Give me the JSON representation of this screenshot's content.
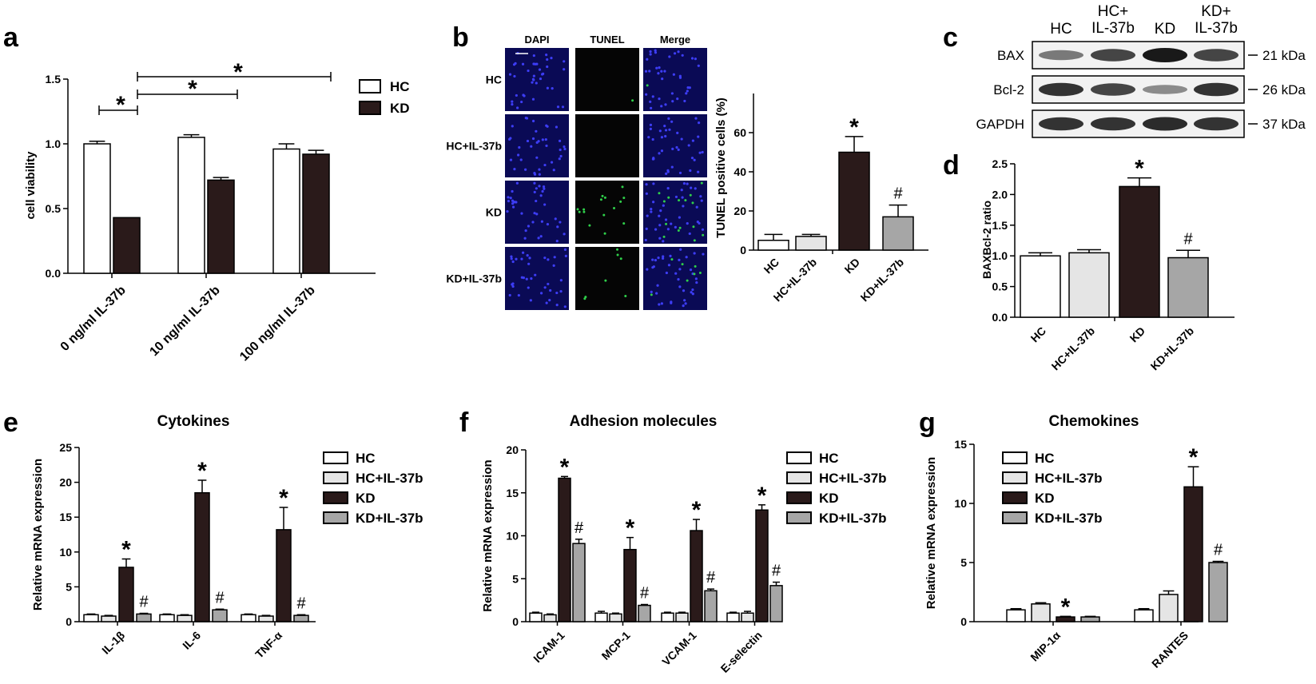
{
  "panels": {
    "a": "a",
    "b": "b",
    "c": "c",
    "d": "d",
    "e": "e",
    "f": "f",
    "g": "g"
  },
  "colors": {
    "HC": "#ffffff",
    "HC_IL37b": "#e5e5e5",
    "KD": "#2a1a1a",
    "KD_IL37b": "#a6a6a6",
    "dapi_bg": "#0a0a55",
    "dapi_dot": "#3d3df5",
    "tunel_bg": "#050505",
    "tunel_dot": "#2fd04a"
  },
  "microscopy": {
    "columns": [
      "DAPI",
      "TUNEL",
      "Merge"
    ],
    "rows": [
      "HC",
      "HC+IL-37b",
      "KD",
      "KD+IL-37b"
    ],
    "tunel_density": [
      0.02,
      0.0,
      0.25,
      0.12
    ]
  },
  "western_blot": {
    "columns": [
      "HC",
      "HC+\nIL-37b",
      "KD",
      "KD+\nIL-37b"
    ],
    "proteins": [
      {
        "name": "BAX",
        "size": "21 kDa",
        "intensity": [
          0.45,
          0.75,
          1.0,
          0.75
        ]
      },
      {
        "name": "Bcl-2",
        "size": "26 kDa",
        "intensity": [
          0.85,
          0.75,
          0.35,
          0.85
        ]
      },
      {
        "name": "GAPDH",
        "size": "37 kDa",
        "intensity": [
          0.85,
          0.85,
          0.9,
          0.85
        ]
      }
    ]
  },
  "chart_data": [
    {
      "id": "a",
      "type": "bar",
      "ylabel": "cell viability",
      "ylim": [
        0,
        1.5
      ],
      "yticks": [
        "0.0",
        "0.5",
        "1.0",
        "1.5"
      ],
      "categories": [
        "0 ng/ml IL-37b",
        "10 ng/ml IL-37b",
        "100 ng/ml IL-37b"
      ],
      "series": [
        {
          "name": "HC",
          "values": [
            1.0,
            1.05,
            0.96
          ],
          "errors": [
            0.02,
            0.02,
            0.04
          ]
        },
        {
          "name": "KD",
          "values": [
            0.43,
            0.72,
            0.92
          ],
          "errors": [
            0.0,
            0.02,
            0.03
          ]
        }
      ],
      "legend": [
        "HC",
        "KD"
      ],
      "significance": [
        "*",
        "*",
        "*"
      ]
    },
    {
      "id": "b",
      "type": "bar",
      "ylabel": "TUNEL positive cells (%)",
      "ylim": [
        0,
        80
      ],
      "yticks": [
        "0",
        "20",
        "40",
        "60"
      ],
      "categories": [
        "HC",
        "HC+IL-37b",
        "KD",
        "KD+IL-37b"
      ],
      "values": [
        5,
        7,
        50,
        17
      ],
      "errors": [
        3,
        1,
        8,
        6
      ],
      "annotations": [
        "",
        "",
        "*",
        "#"
      ]
    },
    {
      "id": "d",
      "type": "bar",
      "ylabel": "BAXBcl-2 ratio",
      "ylim": [
        0,
        2.5
      ],
      "yticks": [
        "0.0",
        "0.5",
        "1.0",
        "1.5",
        "2.0",
        "2.5"
      ],
      "categories": [
        "HC",
        "HC+IL-37b",
        "KD",
        "KD+IL-37b"
      ],
      "values": [
        1.0,
        1.05,
        2.13,
        0.97
      ],
      "errors": [
        0.05,
        0.05,
        0.14,
        0.12
      ],
      "annotations": [
        "",
        "",
        "*",
        "#"
      ]
    },
    {
      "id": "e",
      "type": "bar",
      "title": "Cytokines",
      "ylabel": "Relative mRNA expression",
      "ylim": [
        0,
        25
      ],
      "yticks": [
        "0",
        "5",
        "10",
        "15",
        "20",
        "25"
      ],
      "categories": [
        "IL-1β",
        "IL-6",
        "TNF-α"
      ],
      "series": [
        {
          "name": "HC",
          "values": [
            1.0,
            1.0,
            1.0
          ],
          "errors": [
            0.1,
            0.1,
            0.1
          ]
        },
        {
          "name": "HC+IL-37b",
          "values": [
            0.8,
            0.9,
            0.8
          ],
          "errors": [
            0.1,
            0.1,
            0.1
          ]
        },
        {
          "name": "KD",
          "values": [
            7.8,
            18.5,
            13.2
          ],
          "errors": [
            1.2,
            1.8,
            3.2
          ]
        },
        {
          "name": "KD+IL-37b",
          "values": [
            1.1,
            1.7,
            0.9
          ],
          "errors": [
            0.1,
            0.1,
            0.1
          ]
        }
      ],
      "annotations": [
        [
          "",
          "",
          "*",
          "#"
        ],
        [
          "",
          "",
          "*",
          "#"
        ],
        [
          "",
          "",
          "*",
          "#"
        ]
      ],
      "legend": [
        "HC",
        "HC+IL-37b",
        "KD",
        "KD+IL-37b"
      ]
    },
    {
      "id": "f",
      "type": "bar",
      "title": "Adhesion molecules",
      "ylabel": "Relative mRNA expression",
      "ylim": [
        0,
        20
      ],
      "yticks": [
        "0",
        "5",
        "10",
        "15",
        "20"
      ],
      "categories": [
        "ICAM-1",
        "MCP-1",
        "VCAM-1",
        "E-selectin"
      ],
      "series": [
        {
          "name": "HC",
          "values": [
            1.0,
            1.0,
            1.0,
            1.0
          ],
          "errors": [
            0.1,
            0.2,
            0.1,
            0.1
          ]
        },
        {
          "name": "HC+IL-37b",
          "values": [
            0.8,
            0.9,
            1.0,
            1.0
          ],
          "errors": [
            0.1,
            0.1,
            0.1,
            0.2
          ]
        },
        {
          "name": "KD",
          "values": [
            16.7,
            8.4,
            10.6,
            13.0
          ],
          "errors": [
            0.2,
            1.4,
            1.3,
            0.6
          ]
        },
        {
          "name": "KD+IL-37b",
          "values": [
            9.1,
            1.9,
            3.6,
            4.2
          ],
          "errors": [
            0.5,
            0.1,
            0.2,
            0.4
          ]
        }
      ],
      "annotations": [
        [
          "",
          "",
          "*",
          "#"
        ],
        [
          "",
          "",
          "*",
          "#"
        ],
        [
          "",
          "",
          "*",
          "#"
        ],
        [
          "",
          "",
          "*",
          "#"
        ]
      ],
      "legend": [
        "HC",
        "HC+IL-37b",
        "KD",
        "KD+IL-37b"
      ]
    },
    {
      "id": "g",
      "type": "bar",
      "title": "Chemokines",
      "ylabel": "Relative mRNA expression",
      "ylim": [
        0,
        15
      ],
      "yticks": [
        "0",
        "5",
        "10",
        "15"
      ],
      "categories": [
        "MIP-1α",
        "RANTES"
      ],
      "series": [
        {
          "name": "HC",
          "values": [
            1.0,
            1.0
          ],
          "errors": [
            0.1,
            0.1
          ]
        },
        {
          "name": "HC+IL-37b",
          "values": [
            1.5,
            2.3
          ],
          "errors": [
            0.1,
            0.3
          ]
        },
        {
          "name": "KD",
          "values": [
            0.4,
            11.4
          ],
          "errors": [
            0.05,
            1.7
          ]
        },
        {
          "name": "KD+IL-37b",
          "values": [
            0.4,
            5.0
          ],
          "errors": [
            0.05,
            0.1
          ]
        }
      ],
      "annotations": [
        [
          "",
          "",
          "*",
          ""
        ],
        [
          "",
          "",
          "*",
          "#"
        ]
      ],
      "legend": [
        "HC",
        "HC+IL-37b",
        "KD",
        "KD+IL-37b"
      ]
    }
  ]
}
